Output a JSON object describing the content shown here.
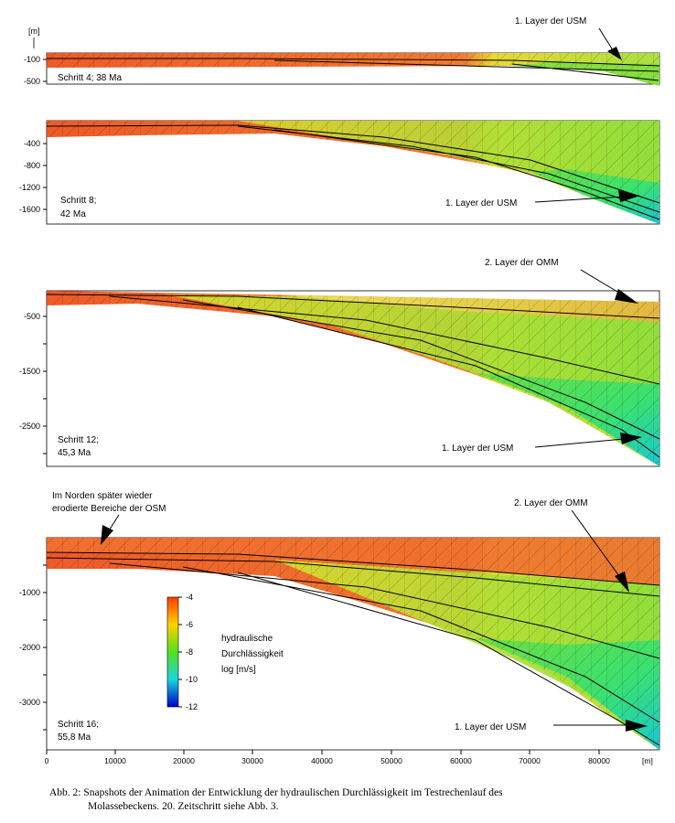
{
  "unit_label": "[m]",
  "x_axis": {
    "ticks": [
      "0",
      "10000",
      "20000",
      "30000",
      "40000",
      "50000",
      "60000",
      "70000",
      "80000"
    ],
    "unit": "[m]"
  },
  "panels": [
    {
      "step_line1": "Schritt 4; 38 Ma",
      "step_line2": "",
      "y_ticks": [
        "-100",
        "-500"
      ],
      "annotations": [
        "1. Layer der USM"
      ]
    },
    {
      "step_line1": "Schritt 8;",
      "step_line2": "42 Ma",
      "y_ticks": [
        "-400",
        "-800",
        "-1200",
        "-1600"
      ],
      "annotations": [
        "1. Layer der USM"
      ]
    },
    {
      "step_line1": "Schritt 12;",
      "step_line2": "45,3 Ma",
      "y_ticks": [
        "-500",
        "-1500",
        "-2500"
      ],
      "annotations": [
        "2. Layer der OMM",
        "1. Layer der USM"
      ]
    },
    {
      "step_line1": "Schritt 16;",
      "step_line2": "55,8 Ma",
      "y_ticks": [
        "-1000",
        "-2000",
        "-3000"
      ],
      "annotations": [
        "Im Norden später wieder",
        "erodierte Bereiche der OSM",
        "2. Layer der OMM",
        "1. Layer der USM"
      ]
    }
  ],
  "legend": {
    "ticks": [
      "-4",
      "-6",
      "-8",
      "-10",
      "-12"
    ],
    "label_lines": [
      "hydraulische",
      "Durchlässigkeit",
      "log [m/s]"
    ],
    "colors": [
      "#ff3b00",
      "#ffd000",
      "#52e21a",
      "#18d6e0",
      "#0000c8"
    ]
  },
  "caption": {
    "line1": "Abb. 2: Snapshots der Animation der Entwicklung der hydraulischen Durchlässigkeit im Testrechenlauf des",
    "line2": "Molassebeckens. 20. Zeitschritt siehe Abb. 3."
  }
}
